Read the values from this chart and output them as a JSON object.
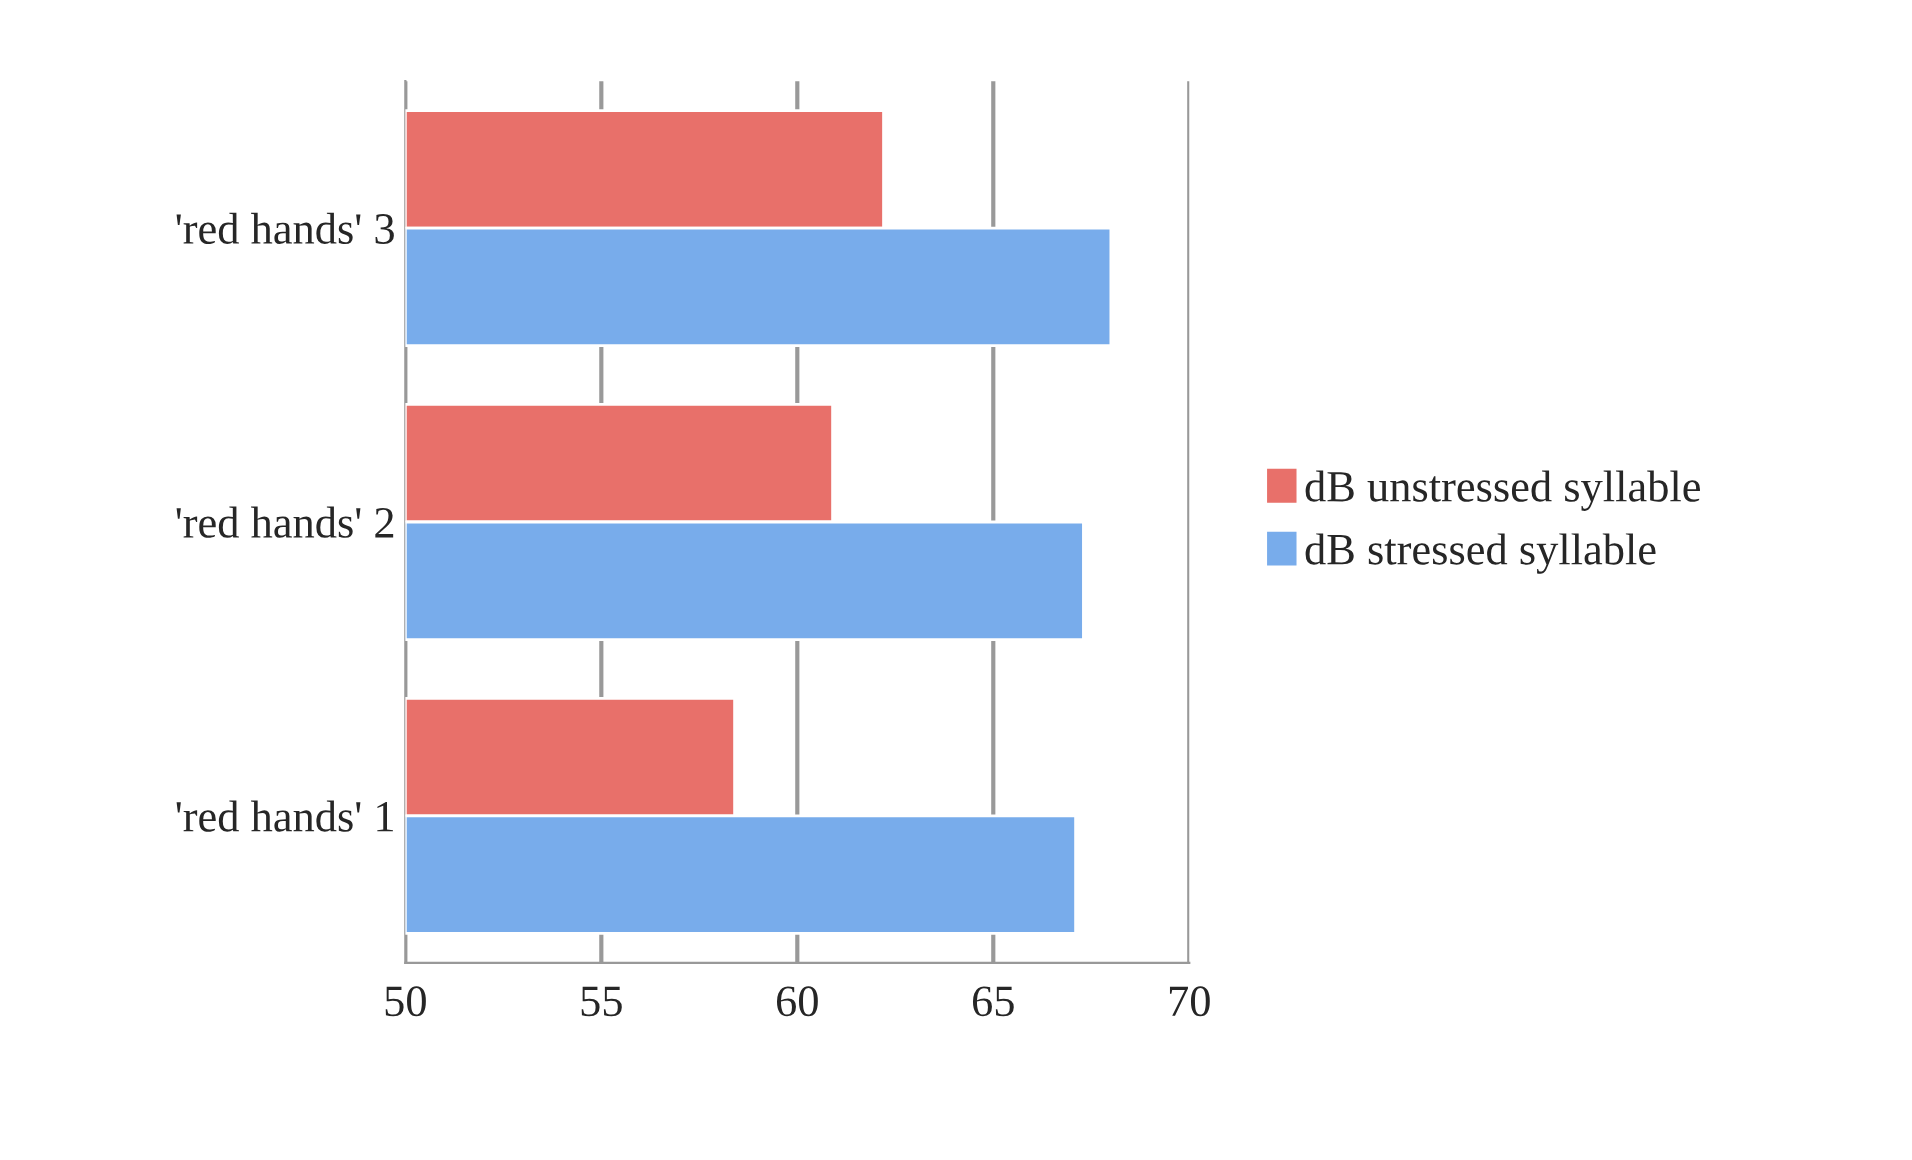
{
  "chart_data": {
    "type": "bar",
    "orientation": "horizontal",
    "categories": [
      "'red hands' 3",
      "'red hands' 2",
      "'red hands' 1"
    ],
    "series": [
      {
        "name": "dB unstressed syllable",
        "color": "#e8706a",
        "values": [
          62.2,
          60.9,
          58.4
        ]
      },
      {
        "name": "dB stressed syllable",
        "color": "#78aceb",
        "values": [
          68.0,
          67.3,
          67.1
        ]
      }
    ],
    "xlim": [
      50,
      70
    ],
    "xticks": [
      50,
      55,
      60,
      65,
      70
    ],
    "grid": "x",
    "legend": "right"
  }
}
